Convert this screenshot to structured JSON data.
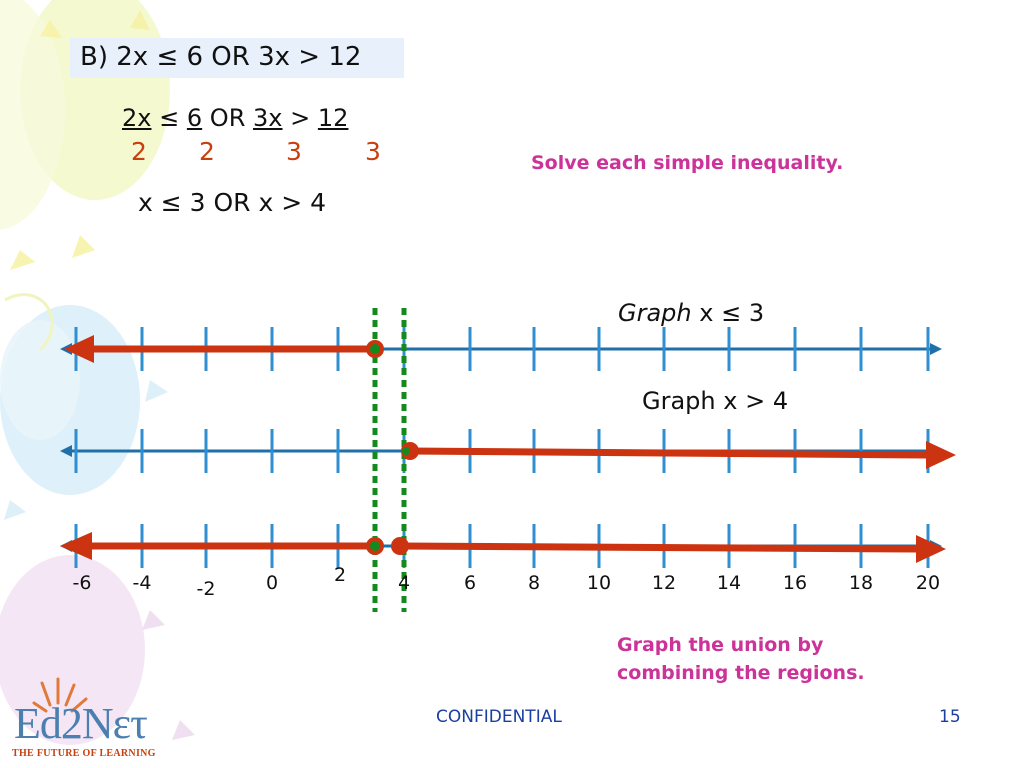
{
  "title": "B) 2x ≤ 6 OR 3x > 12",
  "fraction_row": {
    "num1": "2x",
    "op1": "≤",
    "num2": "6",
    "or": "OR",
    "num3": "3x",
    "op2": ">",
    "num4": "12",
    "den1": "2",
    "den2": "2",
    "den3": "3",
    "den4": "3"
  },
  "result": "x ≤ 3 OR x > 4",
  "note_solve": "Solve each simple inequality.",
  "graph1_label_italic": "Graph",
  "graph1_label_rest": " x ≤ 3",
  "graph2_label": "Graph x > 4",
  "tick_labels": [
    {
      "text": "-6",
      "value": -6
    },
    {
      "text": "-4",
      "value": -4
    },
    {
      "text": "-2",
      "value": -2
    },
    {
      "text": "0",
      "value": 0
    },
    {
      "text": "2",
      "value": 2
    },
    {
      "text": "4",
      "value": 4
    },
    {
      "text": "6",
      "value": 6
    },
    {
      "text": "8",
      "value": 8
    },
    {
      "text": "10",
      "value": 10
    },
    {
      "text": "12",
      "value": 12
    },
    {
      "text": "14",
      "value": 14
    },
    {
      "text": "16",
      "value": 16
    },
    {
      "text": "18",
      "value": 18
    },
    {
      "text": "20",
      "value": 20
    }
  ],
  "note_union_line1": "Graph the union by",
  "note_union_line2": "combining the regions.",
  "footer_center": "CONFIDENTIAL",
  "page_number": "15",
  "logo_text": "Ed2Nετ",
  "logo_tagline": "THE FUTURE OF LEARNING",
  "colors": {
    "axis": "#1f6fa8",
    "shade": "#cc3311",
    "guide": "#138a1e",
    "note": "#cc3399",
    "footer": "#1a3fa0"
  }
}
